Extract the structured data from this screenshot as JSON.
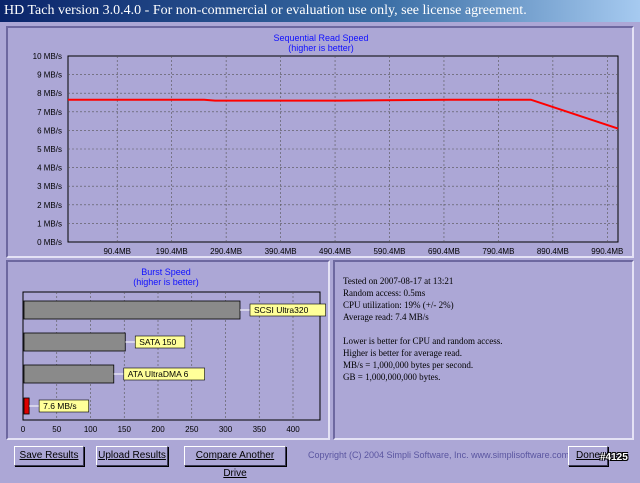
{
  "window": {
    "title": "HD Tach version 3.0.4.0  - For non-commercial or evaluation use only, see license agreement."
  },
  "colors": {
    "background": "#aca7d6",
    "read_line": "#ff0000",
    "label_bg": "#ffff99",
    "bar_gray": "#8a8a8a",
    "title_blue": "#1010ff"
  },
  "chart_data": [
    {
      "type": "line",
      "title": "Sequential Read Speed",
      "subtitle": "(higher is better)",
      "y_ticks": [
        "0 MB/s",
        "1 MB/s",
        "2 MB/s",
        "3 MB/s",
        "4 MB/s",
        "5 MB/s",
        "6 MB/s",
        "7 MB/s",
        "8 MB/s",
        "9 MB/s",
        "10 MB/s"
      ],
      "x_ticks": [
        "90.4MB",
        "190.4MB",
        "290.4MB",
        "390.4MB",
        "490.4MB",
        "590.4MB",
        "690.4MB",
        "790.4MB",
        "890.4MB",
        "990.4MB"
      ],
      "ylim": [
        0,
        10
      ],
      "xlim": [
        0,
        1010
      ],
      "grid": true,
      "series": [
        {
          "x": [
            0,
            250,
            270,
            500,
            700,
            850,
            1010
          ],
          "y": [
            7.65,
            7.65,
            7.6,
            7.6,
            7.65,
            7.65,
            6.1
          ]
        }
      ]
    },
    {
      "type": "bar",
      "orientation": "horizontal",
      "title": "Burst Speed",
      "subtitle": "(higher is better)",
      "categories": [
        "SCSI Ultra320",
        "SATA 150",
        "ATA UltraDMA 6",
        "7.6 MB/s"
      ],
      "values": [
        320,
        150,
        133,
        7.6
      ],
      "bar_colors": [
        "#8a8a8a",
        "#8a8a8a",
        "#8a8a8a",
        "#dd0000"
      ],
      "x_ticks": [
        "0",
        "50",
        "100",
        "150",
        "200",
        "250",
        "300",
        "350",
        "400"
      ],
      "xlim": [
        0,
        440
      ]
    }
  ],
  "info": {
    "tested": "Tested on 2007-08-17 at 13:21",
    "random_access": "Random access: 0.5ms",
    "cpu": "CPU utilization: 19% (+/- 2%)",
    "average": "Average read: 7.4 MB/s",
    "note1": "Lower is better for CPU and random access.",
    "note2": "Higher is better for average read.",
    "note3": "MB/s = 1,000,000 bytes per second.",
    "note4": "GB = 1,000,000,000 bytes."
  },
  "buttons": {
    "save": "Save Results",
    "upload": "Upload Results",
    "compare": "Compare Another Drive",
    "done": "Done"
  },
  "copyright": "Copyright (C) 2004 Simpli Software, Inc. www.simplisoftware.com",
  "watermark": "#4125"
}
